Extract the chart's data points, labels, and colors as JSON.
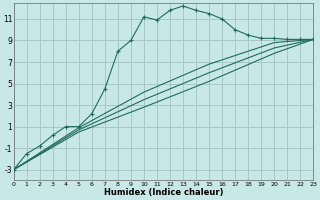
{
  "xlabel": "Humidex (Indice chaleur)",
  "bg_color": "#c8e8e8",
  "grid_color": "#a8c8c8",
  "line_color": "#1e6b5a",
  "xlim": [
    0,
    23
  ],
  "ylim": [
    -4,
    12.5
  ],
  "xticks": [
    0,
    1,
    2,
    3,
    4,
    5,
    6,
    7,
    8,
    9,
    10,
    11,
    12,
    13,
    14,
    15,
    16,
    17,
    18,
    19,
    20,
    21,
    22,
    23
  ],
  "yticks": [
    -3,
    -1,
    1,
    3,
    5,
    7,
    9,
    11
  ],
  "curve_x": [
    0,
    1,
    2,
    3,
    4,
    5,
    6,
    7,
    8,
    9,
    10,
    11,
    12,
    13,
    14,
    15,
    16,
    17,
    18,
    19,
    20,
    21,
    22,
    23
  ],
  "curve_y": [
    -3,
    -1.5,
    -0.8,
    0.2,
    1.0,
    1.0,
    2.2,
    4.5,
    8.0,
    9.0,
    11.2,
    10.9,
    11.8,
    12.2,
    11.8,
    11.5,
    11.0,
    10.0,
    9.5,
    9.2,
    9.2,
    9.1,
    9.1,
    9.1
  ],
  "line1_x": [
    0,
    23
  ],
  "line1_y": [
    -3,
    9.1
  ],
  "line2_x": [
    0,
    23
  ],
  "line2_y": [
    -3,
    9.1
  ],
  "line3_x": [
    0,
    23
  ],
  "line3_y": [
    -3,
    9.1
  ],
  "line1_mid_x": [
    0,
    5,
    10,
    15,
    20,
    23
  ],
  "line1_mid_y": [
    -3,
    0.5,
    2.8,
    5.2,
    7.8,
    9.1
  ],
  "line2_mid_x": [
    0,
    5,
    10,
    15,
    20,
    23
  ],
  "line2_mid_y": [
    -3,
    0.7,
    3.5,
    6.0,
    8.3,
    9.1
  ],
  "line3_mid_x": [
    0,
    5,
    10,
    15,
    20,
    23
  ],
  "line3_mid_y": [
    -3,
    0.9,
    4.2,
    6.8,
    8.8,
    9.1
  ]
}
